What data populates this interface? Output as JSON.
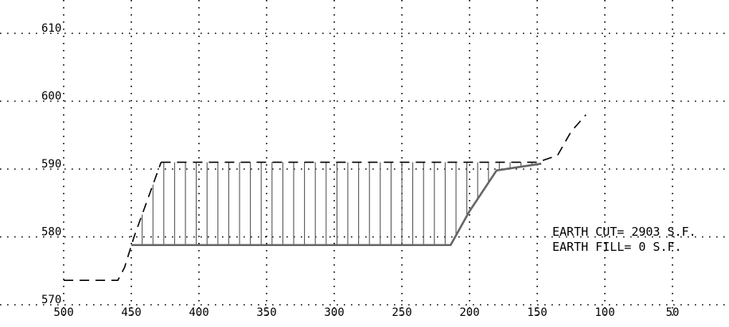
{
  "chart_data": {
    "type": "line",
    "title": "",
    "xlabel": "",
    "ylabel": "",
    "x_reversed": true,
    "xlim": [
      500,
      0
    ],
    "ylim": [
      570,
      612
    ],
    "x_ticks": [
      500,
      450,
      400,
      350,
      300,
      250,
      200,
      150,
      100,
      50
    ],
    "y_ticks": [
      570,
      580,
      590,
      600,
      610
    ],
    "grid": true,
    "series": [
      {
        "role": "existing-ground",
        "style": "dashed",
        "x": [
          500,
          460,
          455,
          448,
          428
        ],
        "y": [
          573.6,
          573.6,
          575.5,
          580.0,
          591.0
        ]
      },
      {
        "role": "existing-ground",
        "style": "dashed",
        "x": [
          428,
          150,
          135,
          125,
          114
        ],
        "y": [
          591.0,
          591.0,
          592.0,
          595.5,
          598.0
        ]
      },
      {
        "role": "proposed-grade",
        "style": "solid",
        "x": [
          450,
          214,
          207,
          200,
          180,
          147
        ],
        "y": [
          578.8,
          578.8,
          581.3,
          583.8,
          589.8,
          590.8
        ]
      }
    ],
    "hatch_x_start": 450,
    "hatch_x_end": 150,
    "hatch_spacing": 8,
    "annotations": [
      "EARTH CUT= 2903 S.F.",
      "EARTH FILL= 0 S.F."
    ]
  },
  "colors": {
    "grid": "#000000",
    "existing": "#000000",
    "proposed": "#666666",
    "hatch": "#555555"
  }
}
